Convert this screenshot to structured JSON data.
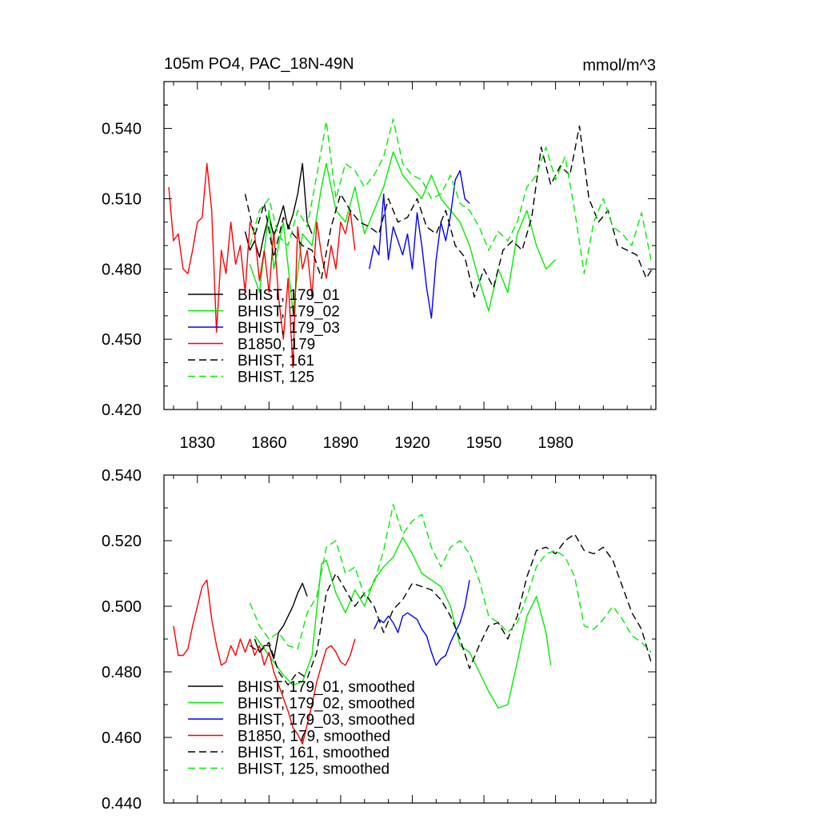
{
  "chart_data": [
    {
      "type": "line",
      "title": "105m PO4, PAC_18N-49N",
      "units": "mmol/m^3",
      "xlim": [
        1816,
        2022
      ],
      "ylim": [
        0.42,
        0.56
      ],
      "xticks": [
        1830,
        1860,
        1890,
        1920,
        1950,
        1980
      ],
      "yticks": [
        0.42,
        0.45,
        0.48,
        0.51,
        0.54
      ],
      "ytick_labels": [
        "0.420",
        "0.450",
        "0.480",
        "0.510",
        "0.540"
      ],
      "legend_position": "bottom-left",
      "series": [
        {
          "name": "BHIST, 179_01",
          "color": "#000000",
          "dash": false,
          "x": [
            1850,
            1852,
            1854,
            1856,
            1858,
            1860,
            1862,
            1864,
            1866,
            1868,
            1870,
            1872,
            1874,
            1876,
            1878
          ],
          "y": [
            0.496,
            0.488,
            0.492,
            0.485,
            0.495,
            0.503,
            0.494,
            0.5,
            0.507,
            0.497,
            0.503,
            0.512,
            0.525,
            0.5,
            0.495
          ]
        },
        {
          "name": "BHIST, 179_02",
          "color": "#00ee00",
          "dash": false,
          "x": [
            1852,
            1856,
            1860,
            1862,
            1866,
            1870,
            1874,
            1878,
            1882,
            1884,
            1888,
            1892,
            1896,
            1900,
            1904,
            1908,
            1912,
            1916,
            1920,
            1924,
            1928,
            1932,
            1936,
            1940,
            1944,
            1948,
            1952,
            1956,
            1960,
            1964,
            1968,
            1972,
            1976,
            1980
          ],
          "y": [
            0.482,
            0.47,
            0.505,
            0.48,
            0.5,
            0.462,
            0.495,
            0.49,
            0.515,
            0.525,
            0.505,
            0.5,
            0.515,
            0.495,
            0.505,
            0.515,
            0.53,
            0.52,
            0.515,
            0.51,
            0.52,
            0.51,
            0.505,
            0.5,
            0.49,
            0.475,
            0.462,
            0.48,
            0.47,
            0.495,
            0.505,
            0.49,
            0.48,
            0.484
          ]
        },
        {
          "name": "BHIST, 179_03",
          "color": "#0000ff",
          "dash": false,
          "x": [
            1902,
            1904,
            1906,
            1908,
            1910,
            1912,
            1914,
            1916,
            1918,
            1920,
            1922,
            1924,
            1926,
            1928,
            1930,
            1932,
            1934,
            1936,
            1938,
            1940,
            1942,
            1944
          ],
          "y": [
            0.48,
            0.49,
            0.486,
            0.512,
            0.484,
            0.498,
            0.492,
            0.486,
            0.495,
            0.48,
            0.504,
            0.49,
            0.472,
            0.459,
            0.484,
            0.5,
            0.492,
            0.503,
            0.518,
            0.522,
            0.51,
            0.508
          ]
        },
        {
          "name": "B1850, 179",
          "color": "#ff0000",
          "dash": false,
          "x": [
            1818,
            1820,
            1822,
            1824,
            1826,
            1828,
            1830,
            1832,
            1834,
            1836,
            1838,
            1840,
            1842,
            1844,
            1846,
            1848,
            1850,
            1852,
            1854,
            1856,
            1858,
            1860,
            1862,
            1864,
            1866,
            1868,
            1870,
            1872,
            1874,
            1876,
            1878,
            1880,
            1882,
            1884,
            1886,
            1888,
            1890,
            1892,
            1894,
            1896
          ],
          "y": [
            0.515,
            0.492,
            0.495,
            0.48,
            0.478,
            0.488,
            0.5,
            0.502,
            0.525,
            0.505,
            0.453,
            0.488,
            0.478,
            0.5,
            0.482,
            0.49,
            0.47,
            0.5,
            0.495,
            0.475,
            0.488,
            0.47,
            0.496,
            0.468,
            0.45,
            0.476,
            0.438,
            0.498,
            0.48,
            0.488,
            0.468,
            0.5,
            0.486,
            0.476,
            0.49,
            0.48,
            0.5,
            0.495,
            0.505,
            0.488
          ]
        },
        {
          "name": "BHIST, 161",
          "color": "#000000",
          "dash": true,
          "x": [
            1850,
            1854,
            1858,
            1862,
            1866,
            1870,
            1874,
            1878,
            1882,
            1886,
            1890,
            1894,
            1898,
            1902,
            1906,
            1910,
            1914,
            1918,
            1922,
            1926,
            1930,
            1934,
            1938,
            1942,
            1946,
            1950,
            1954,
            1958,
            1962,
            1966,
            1970,
            1974,
            1978,
            1982,
            1986,
            1990,
            1994,
            1998,
            2002,
            2006,
            2010,
            2014,
            2018,
            2021
          ],
          "y": [
            0.512,
            0.494,
            0.508,
            0.485,
            0.502,
            0.495,
            0.49,
            0.488,
            0.476,
            0.498,
            0.512,
            0.505,
            0.5,
            0.498,
            0.495,
            0.51,
            0.5,
            0.502,
            0.51,
            0.498,
            0.495,
            0.505,
            0.49,
            0.485,
            0.468,
            0.48,
            0.472,
            0.488,
            0.492,
            0.488,
            0.502,
            0.532,
            0.516,
            0.524,
            0.52,
            0.541,
            0.51,
            0.5,
            0.505,
            0.49,
            0.488,
            0.486,
            0.476,
            0.481
          ]
        },
        {
          "name": "BHIST, 125",
          "color": "#00ee00",
          "dash": true,
          "x": [
            1852,
            1856,
            1860,
            1864,
            1868,
            1872,
            1876,
            1880,
            1884,
            1888,
            1892,
            1896,
            1900,
            1904,
            1908,
            1912,
            1916,
            1920,
            1924,
            1928,
            1932,
            1936,
            1940,
            1944,
            1948,
            1952,
            1956,
            1960,
            1964,
            1968,
            1972,
            1976,
            1980,
            1984,
            1988,
            1992,
            1996,
            2000,
            2004,
            2008,
            2012,
            2016,
            2020
          ],
          "y": [
            0.49,
            0.505,
            0.51,
            0.494,
            0.49,
            0.505,
            0.498,
            0.52,
            0.543,
            0.51,
            0.525,
            0.522,
            0.515,
            0.52,
            0.528,
            0.544,
            0.525,
            0.52,
            0.518,
            0.51,
            0.512,
            0.52,
            0.508,
            0.505,
            0.498,
            0.488,
            0.496,
            0.492,
            0.5,
            0.515,
            0.52,
            0.532,
            0.518,
            0.528,
            0.505,
            0.478,
            0.5,
            0.51,
            0.498,
            0.495,
            0.49,
            0.504,
            0.484
          ]
        }
      ]
    },
    {
      "type": "line",
      "xlim": [
        1816,
        2022
      ],
      "ylim": [
        0.44,
        0.54
      ],
      "xticks": [
        1830,
        1860,
        1890,
        1920,
        1950,
        1980
      ],
      "yticks": [
        0.44,
        0.46,
        0.48,
        0.5,
        0.52,
        0.54
      ],
      "ytick_labels": [
        "0.440",
        "0.460",
        "0.480",
        "0.500",
        "0.520",
        "0.540"
      ],
      "legend_position": "bottom-left",
      "series": [
        {
          "name": "BHIST, 179_01, smoothed",
          "color": "#000000",
          "dash": false,
          "x": [
            1854,
            1856,
            1858,
            1860,
            1862,
            1864,
            1866,
            1868,
            1870,
            1872,
            1874,
            1876
          ],
          "y": [
            0.49,
            0.486,
            0.488,
            0.488,
            0.484,
            0.492,
            0.494,
            0.497,
            0.5,
            0.504,
            0.507,
            0.503
          ]
        },
        {
          "name": "BHIST, 179_02, smoothed",
          "color": "#00ee00",
          "dash": false,
          "x": [
            1854,
            1858,
            1862,
            1866,
            1870,
            1874,
            1878,
            1882,
            1884,
            1888,
            1892,
            1896,
            1900,
            1904,
            1908,
            1912,
            1916,
            1920,
            1924,
            1928,
            1932,
            1936,
            1940,
            1944,
            1948,
            1952,
            1956,
            1960,
            1964,
            1968,
            1972,
            1976,
            1978
          ],
          "y": [
            0.491,
            0.487,
            0.483,
            0.479,
            0.476,
            0.477,
            0.485,
            0.513,
            0.514,
            0.504,
            0.498,
            0.505,
            0.5,
            0.508,
            0.512,
            0.515,
            0.521,
            0.516,
            0.51,
            0.508,
            0.506,
            0.5,
            0.488,
            0.486,
            0.48,
            0.474,
            0.469,
            0.47,
            0.483,
            0.497,
            0.503,
            0.492,
            0.482
          ]
        },
        {
          "name": "BHIST, 179_03, smoothed",
          "color": "#0000ff",
          "dash": false,
          "x": [
            1904,
            1906,
            1908,
            1910,
            1912,
            1914,
            1916,
            1918,
            1920,
            1922,
            1924,
            1926,
            1928,
            1930,
            1932,
            1934,
            1936,
            1938,
            1940,
            1942,
            1944
          ],
          "y": [
            0.493,
            0.496,
            0.495,
            0.497,
            0.495,
            0.492,
            0.497,
            0.498,
            0.497,
            0.496,
            0.493,
            0.491,
            0.486,
            0.482,
            0.484,
            0.485,
            0.489,
            0.492,
            0.495,
            0.5,
            0.508
          ]
        },
        {
          "name": "B1850, 179, smoothed",
          "color": "#ff0000",
          "dash": false,
          "x": [
            1820,
            1822,
            1824,
            1826,
            1828,
            1830,
            1832,
            1834,
            1836,
            1838,
            1840,
            1842,
            1844,
            1846,
            1848,
            1850,
            1852,
            1854,
            1856,
            1858,
            1860,
            1862,
            1864,
            1866,
            1868,
            1870,
            1872,
            1874,
            1876,
            1878,
            1880,
            1882,
            1884,
            1886,
            1888,
            1890,
            1892,
            1894,
            1896
          ],
          "y": [
            0.494,
            0.485,
            0.485,
            0.487,
            0.494,
            0.5,
            0.506,
            0.508,
            0.496,
            0.488,
            0.482,
            0.483,
            0.488,
            0.485,
            0.49,
            0.486,
            0.49,
            0.485,
            0.488,
            0.482,
            0.486,
            0.48,
            0.476,
            0.472,
            0.468,
            0.463,
            0.461,
            0.458,
            0.464,
            0.47,
            0.477,
            0.482,
            0.487,
            0.488,
            0.486,
            0.483,
            0.482,
            0.485,
            0.49
          ]
        },
        {
          "name": "BHIST, 161, smoothed",
          "color": "#000000",
          "dash": true,
          "x": [
            1852,
            1856,
            1860,
            1864,
            1868,
            1872,
            1876,
            1880,
            1884,
            1888,
            1892,
            1896,
            1900,
            1904,
            1908,
            1912,
            1916,
            1920,
            1924,
            1928,
            1932,
            1936,
            1940,
            1944,
            1948,
            1952,
            1956,
            1960,
            1964,
            1968,
            1972,
            1976,
            1980,
            1984,
            1988,
            1992,
            1996,
            2000,
            2004,
            2008,
            2012,
            2016,
            2020
          ],
          "y": [
            0.488,
            0.486,
            0.489,
            0.48,
            0.476,
            0.48,
            0.478,
            0.486,
            0.504,
            0.51,
            0.505,
            0.5,
            0.504,
            0.5,
            0.492,
            0.499,
            0.502,
            0.507,
            0.506,
            0.505,
            0.502,
            0.497,
            0.49,
            0.481,
            0.488,
            0.494,
            0.495,
            0.49,
            0.497,
            0.509,
            0.517,
            0.518,
            0.516,
            0.52,
            0.522,
            0.517,
            0.516,
            0.518,
            0.514,
            0.506,
            0.498,
            0.493,
            0.483
          ]
        },
        {
          "name": "BHIST, 125, smoothed",
          "color": "#00ee00",
          "dash": true,
          "x": [
            1852,
            1856,
            1860,
            1864,
            1868,
            1872,
            1876,
            1880,
            1884,
            1888,
            1892,
            1896,
            1900,
            1904,
            1908,
            1912,
            1916,
            1920,
            1924,
            1928,
            1932,
            1936,
            1940,
            1944,
            1948,
            1952,
            1956,
            1960,
            1964,
            1968,
            1972,
            1976,
            1980,
            1984,
            1988,
            1992,
            1996,
            2000,
            2004,
            2008,
            2012,
            2016,
            2020
          ],
          "y": [
            0.501,
            0.494,
            0.49,
            0.492,
            0.488,
            0.487,
            0.498,
            0.503,
            0.518,
            0.52,
            0.51,
            0.512,
            0.503,
            0.507,
            0.517,
            0.531,
            0.522,
            0.526,
            0.528,
            0.518,
            0.512,
            0.518,
            0.52,
            0.516,
            0.508,
            0.497,
            0.495,
            0.492,
            0.495,
            0.503,
            0.512,
            0.516,
            0.517,
            0.515,
            0.509,
            0.494,
            0.493,
            0.496,
            0.5,
            0.496,
            0.491,
            0.489,
            0.486
          ]
        }
      ]
    }
  ]
}
